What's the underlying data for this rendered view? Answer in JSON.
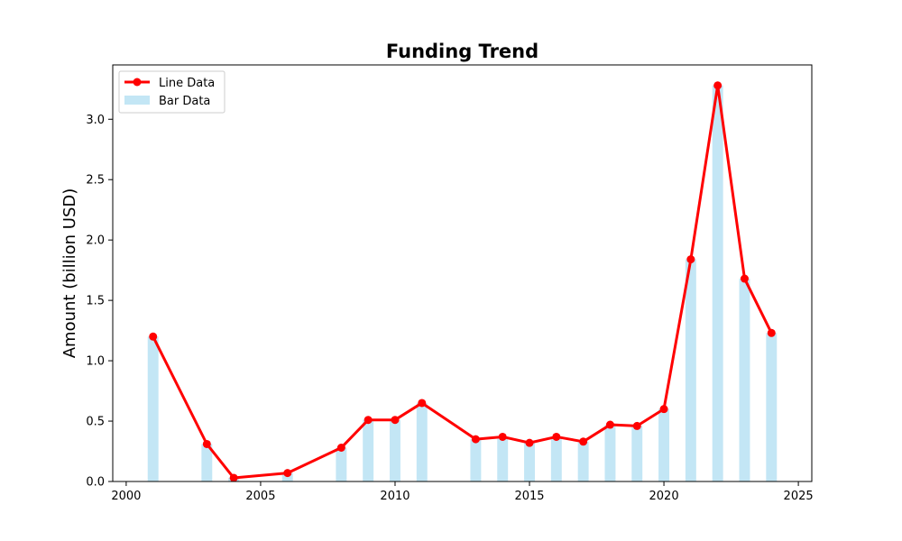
{
  "chart_data": {
    "type": "bar+line",
    "title": "Funding Trend",
    "xlabel": "",
    "ylabel": "Amount (billion USD)",
    "xlim": [
      1999.5,
      2025.5
    ],
    "ylim": [
      0,
      3.45
    ],
    "x_ticks": [
      2000,
      2005,
      2010,
      2015,
      2020,
      2025
    ],
    "y_ticks": [
      0.0,
      0.5,
      1.0,
      1.5,
      2.0,
      2.5,
      3.0
    ],
    "x_tick_labels": [
      "2000",
      "2005",
      "2010",
      "2015",
      "2020",
      "2025"
    ],
    "y_tick_labels": [
      "0.0",
      "0.5",
      "1.0",
      "1.5",
      "2.0",
      "2.5",
      "3.0"
    ],
    "grid": false,
    "legend_placement": "top-left",
    "x": [
      2001,
      2003,
      2004,
      2006,
      2008,
      2009,
      2010,
      2011,
      2013,
      2014,
      2015,
      2016,
      2017,
      2018,
      2019,
      2020,
      2021,
      2022,
      2023,
      2024
    ],
    "series": [
      {
        "name": "Line Data",
        "type": "line",
        "color": "#ff0000",
        "marker": "circle",
        "values": [
          1.2,
          0.31,
          0.03,
          0.07,
          0.28,
          0.51,
          0.51,
          0.65,
          0.35,
          0.37,
          0.32,
          0.37,
          0.33,
          0.47,
          0.46,
          0.6,
          1.84,
          3.28,
          1.68,
          1.23
        ]
      },
      {
        "name": "Bar Data",
        "type": "bar",
        "color": "#87ceeb",
        "opacity": 0.5,
        "values": [
          1.2,
          0.31,
          0.03,
          0.07,
          0.28,
          0.51,
          0.51,
          0.65,
          0.35,
          0.37,
          0.32,
          0.37,
          0.33,
          0.47,
          0.46,
          0.6,
          1.84,
          3.28,
          1.68,
          1.23
        ]
      }
    ]
  }
}
